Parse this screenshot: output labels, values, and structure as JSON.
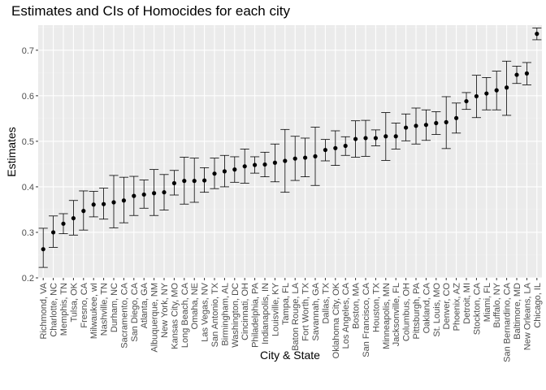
{
  "chart_data": {
    "type": "scatter",
    "title": "Estimates and CIs of Homocides for each city",
    "xlabel": "City & State",
    "ylabel": "Estimates",
    "ylim": [
      0.2,
      0.755
    ],
    "yticks": [
      "0.2",
      "0.3",
      "0.4",
      "0.5",
      "0.6",
      "0.7"
    ],
    "grid": true,
    "panel_background": "#EBEBEB",
    "point_color": "#000000",
    "categories": [
      "Richmond, VA",
      "Charlotte, NC",
      "Memphis, TN",
      "Tulsa, OK",
      "Fresno, CA",
      "Milwaukee, wI",
      "Nashville, TN",
      "Durham, NC",
      "Sacramento, CA",
      "San Diego, CA",
      "Atlanta, GA",
      "Albuquerque, NM",
      "New York, NY",
      "Kansas City, MO",
      "Long Beach, CA",
      "Omaha, NE",
      "Las Vegas, NV",
      "San Antonio, TX",
      "Birmingham, AL",
      "Washington, DC",
      "Cincinnati, OH",
      "Philadelphia, PA",
      "Indianapolis, IN",
      "Louisville, KY",
      "Tampa, FL",
      "Baton Rouge, LA",
      "Fort Worth, TX",
      "Savannah, GA",
      "Dallas, TX",
      "Oklahoma City, OK",
      "Los Angeles, CA",
      "Boston, MA",
      "San Francisco, CA",
      "Houston, TX",
      "Minneapolis, MN",
      "Jacksonville, FL",
      "Columbus, OH",
      "Pittsburgh, PA",
      "Oakland, CA",
      "St. Louis, MO",
      "Denver, CO",
      "Phoenix, AZ",
      "Detroit, MI",
      "Stockton, CA",
      "Miami, FL",
      "Buffalo, NY",
      "San Bernardino, CA",
      "Baltimore, MD",
      "New Orleans, LA",
      "Chicago, IL"
    ],
    "estimates": [
      0.263,
      0.3,
      0.319,
      0.331,
      0.347,
      0.361,
      0.362,
      0.366,
      0.37,
      0.38,
      0.383,
      0.386,
      0.388,
      0.408,
      0.413,
      0.413,
      0.414,
      0.429,
      0.434,
      0.438,
      0.445,
      0.448,
      0.449,
      0.453,
      0.457,
      0.462,
      0.464,
      0.467,
      0.481,
      0.485,
      0.49,
      0.505,
      0.507,
      0.507,
      0.511,
      0.511,
      0.53,
      0.534,
      0.536,
      0.54,
      0.542,
      0.551,
      0.588,
      0.599,
      0.605,
      0.612,
      0.618,
      0.646,
      0.649,
      0.736
    ],
    "ci_lower": [
      0.223,
      0.267,
      0.297,
      0.294,
      0.305,
      0.334,
      0.329,
      0.31,
      0.321,
      0.337,
      0.353,
      0.337,
      0.349,
      0.382,
      0.362,
      0.366,
      0.388,
      0.396,
      0.4,
      0.41,
      0.408,
      0.43,
      0.422,
      0.411,
      0.388,
      0.414,
      0.422,
      0.403,
      0.457,
      0.447,
      0.469,
      0.465,
      0.467,
      0.49,
      0.458,
      0.483,
      0.501,
      0.494,
      0.502,
      0.515,
      0.484,
      0.518,
      0.57,
      0.552,
      0.569,
      0.569,
      0.557,
      0.627,
      0.624,
      0.723
    ],
    "ci_upper": [
      0.309,
      0.336,
      0.341,
      0.37,
      0.391,
      0.39,
      0.397,
      0.425,
      0.421,
      0.423,
      0.415,
      0.438,
      0.427,
      0.436,
      0.465,
      0.463,
      0.442,
      0.463,
      0.469,
      0.466,
      0.483,
      0.466,
      0.476,
      0.494,
      0.526,
      0.511,
      0.507,
      0.531,
      0.504,
      0.523,
      0.51,
      0.545,
      0.546,
      0.525,
      0.563,
      0.54,
      0.56,
      0.573,
      0.569,
      0.565,
      0.598,
      0.584,
      0.607,
      0.645,
      0.64,
      0.654,
      0.676,
      0.665,
      0.673,
      0.749
    ]
  }
}
